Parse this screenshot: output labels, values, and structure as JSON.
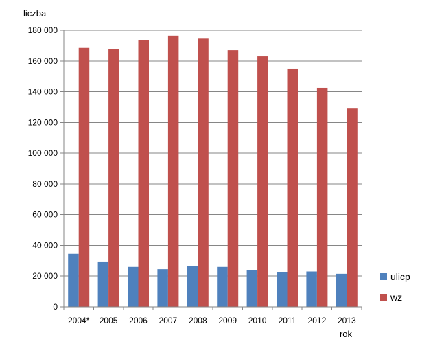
{
  "chart_data": {
    "type": "bar",
    "ylabel": "liczba",
    "xlabel": "rok",
    "categories": [
      "2004*",
      "2005",
      "2006",
      "2007",
      "2008",
      "2009",
      "2010",
      "2011",
      "2012",
      "2013"
    ],
    "series": [
      {
        "name": "ulicp",
        "color": "#4f81bd",
        "values": [
          34500,
          29500,
          26000,
          24500,
          26500,
          26000,
          24000,
          22500,
          23000,
          21500
        ]
      },
      {
        "name": "wz",
        "color": "#c0504d",
        "values": [
          168500,
          167500,
          173500,
          176500,
          174500,
          167000,
          163000,
          155000,
          142500,
          129000
        ]
      }
    ],
    "ylim": [
      0,
      180000
    ],
    "yticks": [
      "0",
      "20 000",
      "40 000",
      "60 000",
      "80 000",
      "100 000",
      "120 000",
      "140 000",
      "160 000",
      "180 000"
    ],
    "grid": true,
    "legend_position": "right"
  }
}
